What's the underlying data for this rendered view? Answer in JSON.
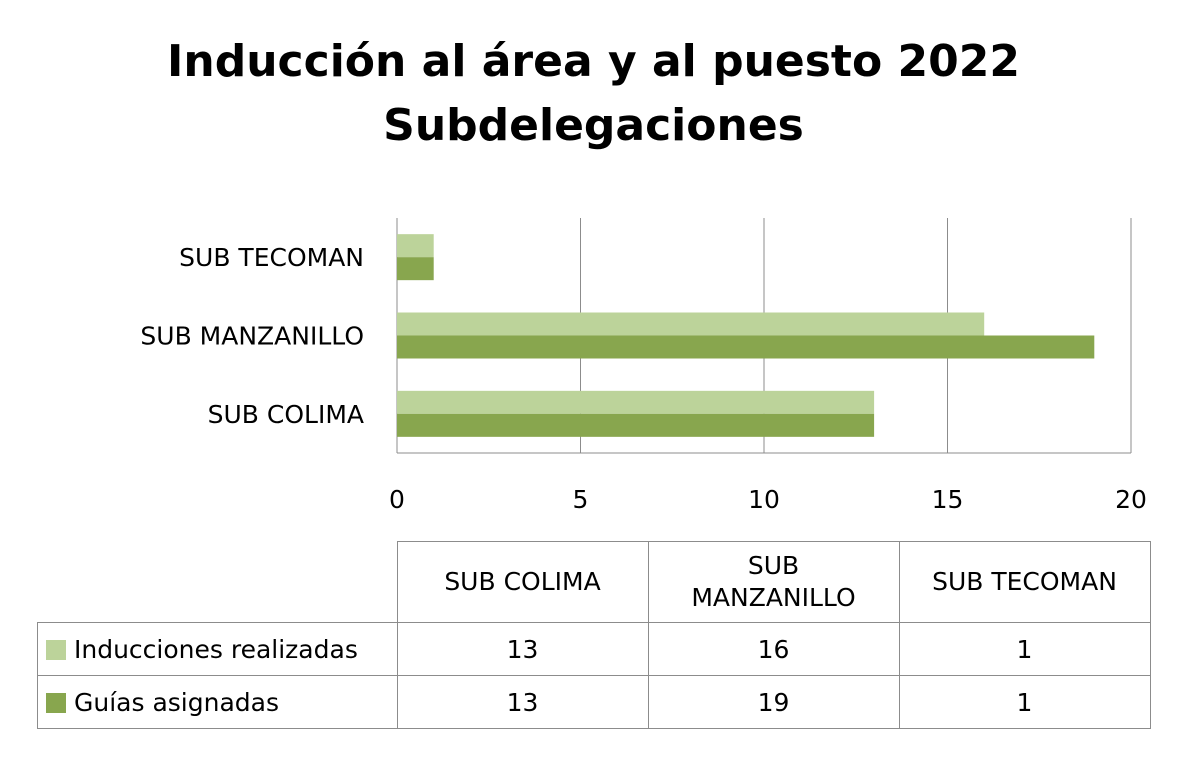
{
  "title": {
    "line1": "Inducción al área y al puesto 2022",
    "line2": "Subdelegaciones"
  },
  "chart_data": {
    "type": "bar",
    "orientation": "horizontal",
    "categories": [
      "SUB COLIMA",
      "SUB MANZANILLO",
      "SUB TECOMAN"
    ],
    "series": [
      {
        "name": "Inducciones realizadas",
        "values": [
          13,
          16,
          1
        ],
        "color": "#bcd39a"
      },
      {
        "name": "Guías asignadas",
        "values": [
          13,
          19,
          1
        ],
        "color": "#88a64e"
      }
    ],
    "xlim": [
      0,
      20
    ],
    "xticks": [
      "0",
      "5",
      "10",
      "15",
      "20"
    ],
    "grid": true,
    "legend": "data table below chart"
  },
  "table": {
    "headers": [
      "SUB COLIMA",
      "SUB\nMANZANILLO",
      "SUB TECOMAN"
    ],
    "rows": [
      {
        "label": "Inducciones realizadas",
        "values": [
          "13",
          "16",
          "1"
        ]
      },
      {
        "label": "Guías asignadas",
        "values": [
          "13",
          "19",
          "1"
        ]
      }
    ]
  }
}
